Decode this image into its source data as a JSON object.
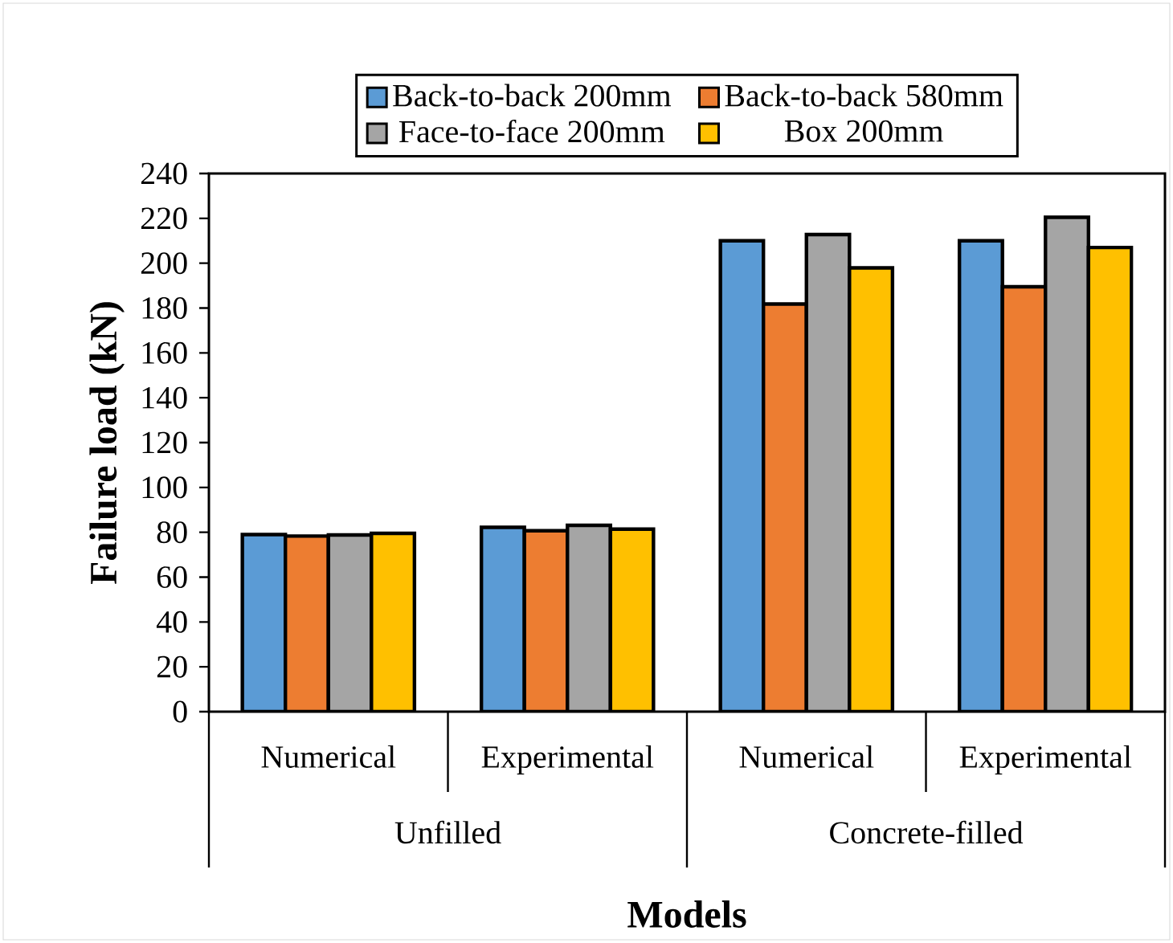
{
  "chart_data": {
    "type": "bar",
    "xlabel": "Models",
    "ylabel": "Failure load (kN)",
    "categories": [
      "Numerical",
      "Experimental",
      "Numerical",
      "Experimental"
    ],
    "annotations": [
      "Unfilled",
      "Concrete-filled"
    ],
    "series": [
      {
        "name": "Back-to-back 200mm",
        "color": "#5b9bd5",
        "values": [
          79,
          82.2,
          210,
          210
        ]
      },
      {
        "name": "Back-to-back 580mm",
        "color": "#ed7d31",
        "values": [
          78.3,
          80.7,
          181.8,
          189.5
        ]
      },
      {
        "name": "Face-to-face 200mm",
        "color": "#a5a5a5",
        "values": [
          78.8,
          83.1,
          212.8,
          220.5
        ]
      },
      {
        "name": "Box 200mm",
        "color": "#ffc000",
        "values": [
          79.5,
          81.4,
          197.9,
          207
        ]
      }
    ],
    "ylim": [
      0,
      240
    ],
    "yticks": [
      0,
      20,
      40,
      60,
      80,
      100,
      120,
      140,
      160,
      180,
      200,
      220,
      240
    ],
    "legend": "top",
    "grid": false
  }
}
